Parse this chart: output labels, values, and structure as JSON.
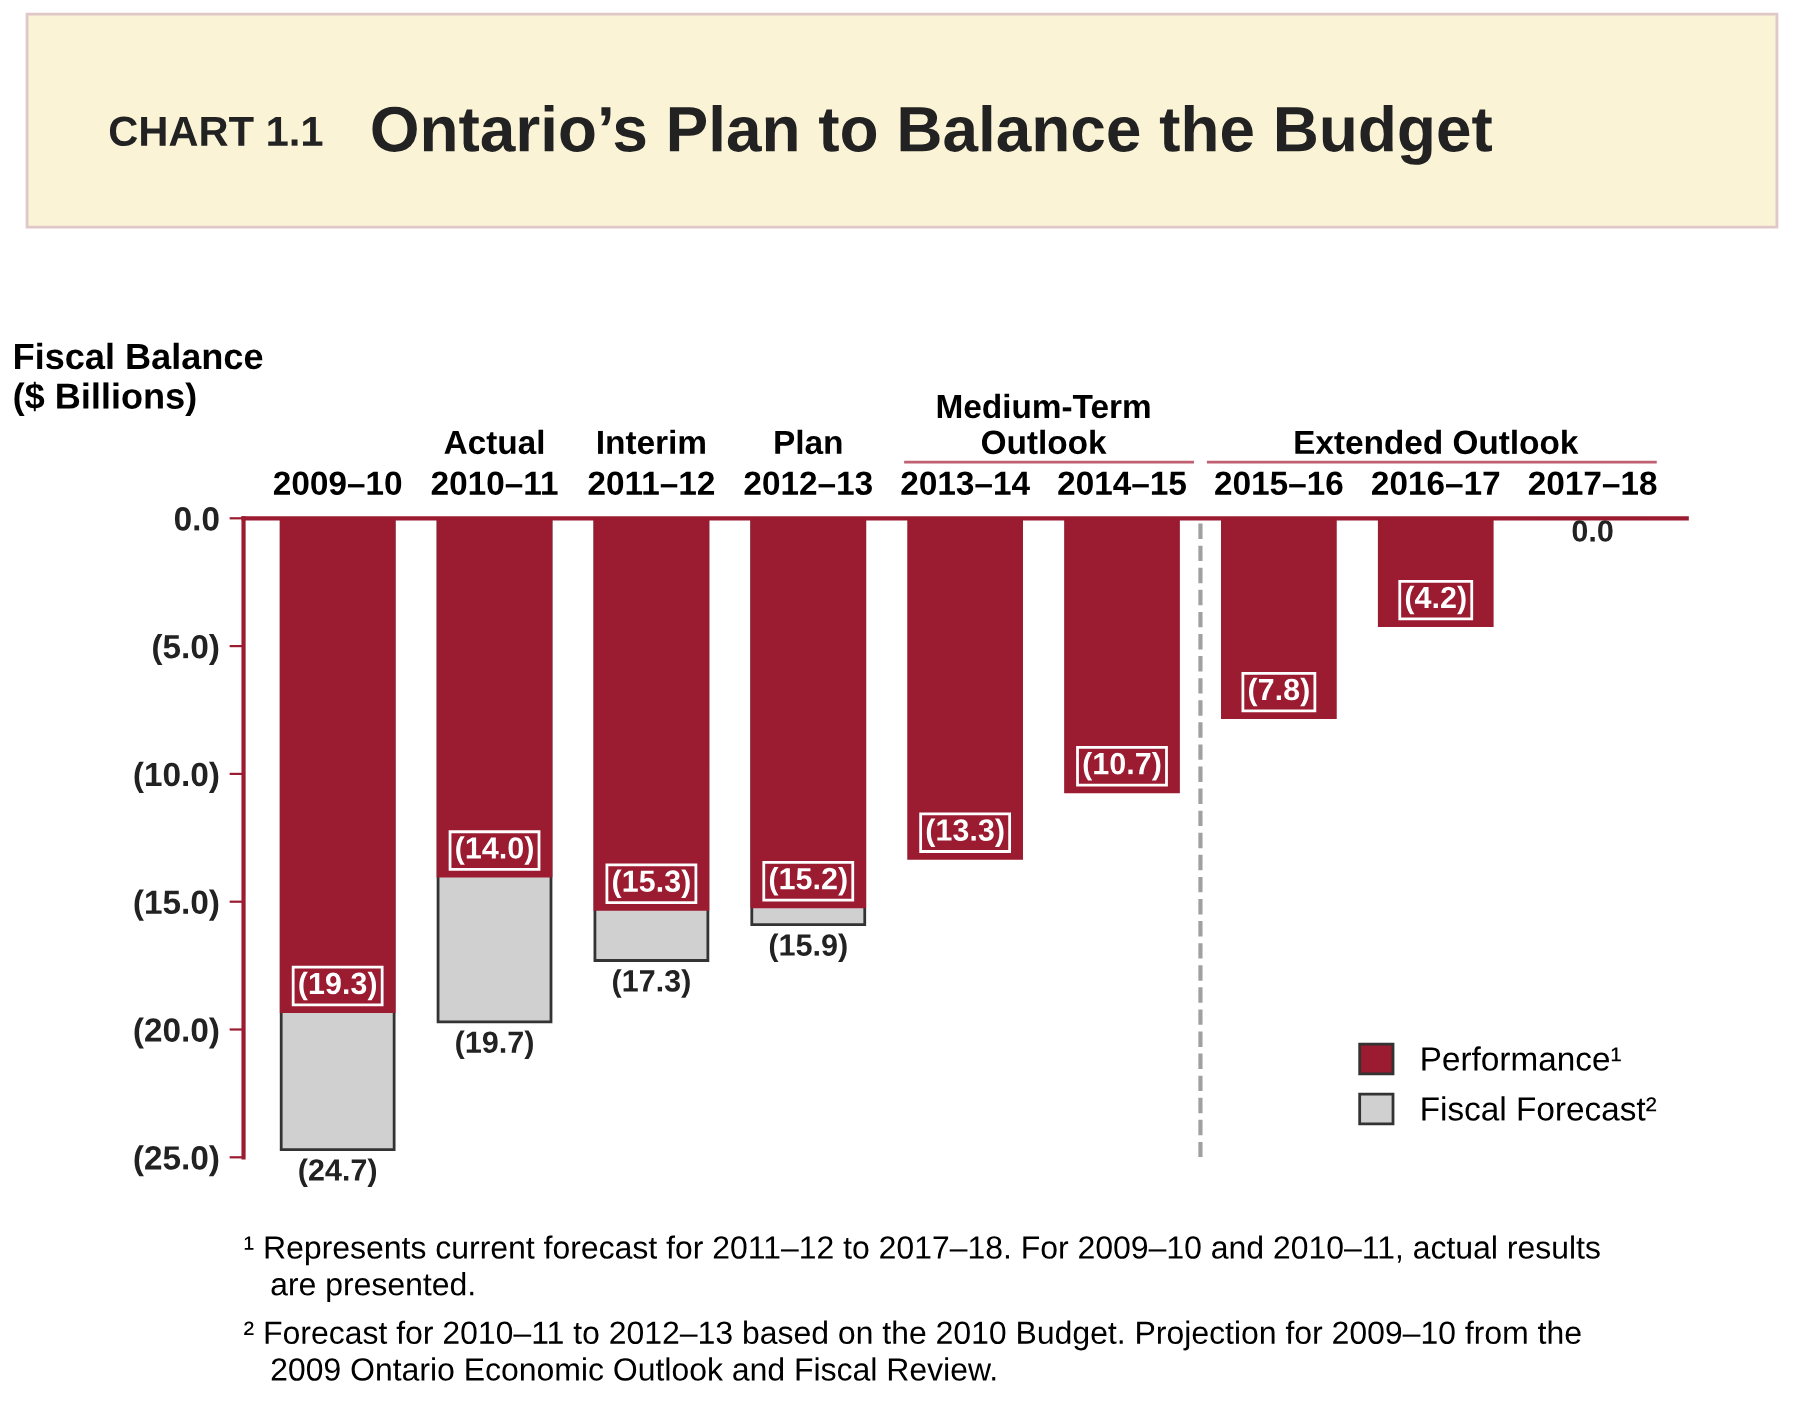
{
  "chart_data": {
    "type": "bar",
    "title": "Ontario’s Plan to Balance the Budget",
    "subtitle": "CHART 1.1",
    "ylabel": "Fiscal Balance\n($ Billions)",
    "categories": [
      "2009–10",
      "2010–11",
      "2011–12",
      "2012–13",
      "2013–14",
      "2014–15",
      "2015–16",
      "2016–17",
      "2017–18"
    ],
    "series": [
      {
        "name": "Performance¹",
        "color": "#9b1b30",
        "values": [
          -19.3,
          -14.0,
          -15.3,
          -15.2,
          -13.3,
          -10.7,
          -7.8,
          -4.2,
          0.0
        ],
        "value_labels": [
          "(19.3)",
          "(14.0)",
          "(15.3)",
          "(15.2)",
          "(13.3)",
          "(10.7)",
          "(7.8)",
          "(4.2)",
          "0.0"
        ]
      },
      {
        "name": "Fiscal Forecast²",
        "color": "#d0d0d0",
        "values": [
          -24.7,
          -19.7,
          -17.3,
          -15.9,
          null,
          null,
          null,
          null,
          null
        ],
        "value_labels": [
          "(24.7)",
          "(19.7)",
          "(17.3)",
          "(15.9)",
          null,
          null,
          null,
          null,
          null
        ]
      }
    ],
    "ylim": [
      -25,
      0
    ],
    "yticks": [
      {
        "value": 0,
        "label": "0.0"
      },
      {
        "value": -5,
        "label": "(5.0)"
      },
      {
        "value": -10,
        "label": "(10.0)"
      },
      {
        "value": -15,
        "label": "(15.0)"
      },
      {
        "value": -20,
        "label": "(20.0)"
      },
      {
        "value": -25,
        "label": "(25.0)"
      }
    ],
    "annotations": [
      "Actual",
      "Interim",
      "Plan",
      "Medium-Term\nOutlook",
      "Extended Outlook",
      "¹ Represents current forecast for 2011–12 to 2017–18. For 2009–10 and 2010–11, actual results\n   are presented.",
      "² Forecast for 2010–11 to 2012–13 based on the 2010 Budget. Projection for 2009–10 from the\n   2009 Ontario Economic Outlook and Fiscal Review."
    ],
    "grid": false,
    "legend": "lower right"
  }
}
